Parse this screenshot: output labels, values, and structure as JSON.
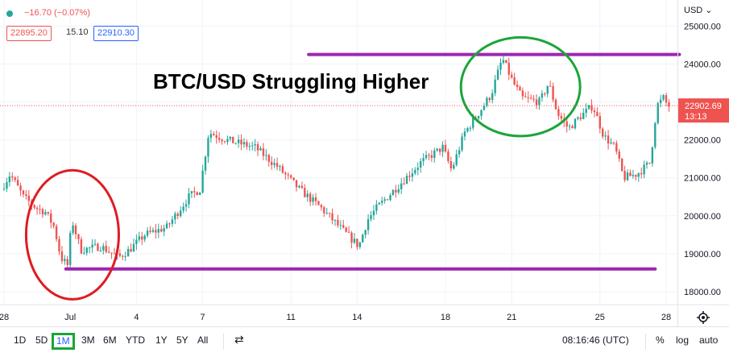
{
  "header": {
    "change": "−16.70 (−0.07%)",
    "bid": "22895.20",
    "spread": "15.10",
    "ask": "22910.30"
  },
  "currency_label": "USD ⌄",
  "price_tag": {
    "price": "22902.69",
    "countdown": "13:13"
  },
  "annotation_title": "BTC/USD Struggling Higher",
  "timeframes": [
    "1D",
    "5D",
    "1M",
    "3M",
    "6M",
    "YTD",
    "1Y",
    "5Y",
    "All"
  ],
  "active_timeframe": "1M",
  "time_readout": "08:16:46 (UTC)",
  "controls": {
    "percent": "%",
    "log": "log",
    "auto": "auto"
  },
  "colors": {
    "up": "#26a69a",
    "down": "#ef5350",
    "support": "#9c27b0",
    "red_circle": "#e01b22",
    "green_circle": "#1aa539",
    "price_tag": "#ef5350"
  },
  "chart_data": {
    "type": "candlestick",
    "title": "BTC/USD Struggling Higher",
    "x_ticks": [
      {
        "label": "28",
        "day": 0
      },
      {
        "label": "Jul",
        "day": 3
      },
      {
        "label": "4",
        "day": 6
      },
      {
        "label": "7",
        "day": 9
      },
      {
        "label": "11",
        "day": 13
      },
      {
        "label": "14",
        "day": 16
      },
      {
        "label": "18",
        "day": 20
      },
      {
        "label": "21",
        "day": 23
      },
      {
        "label": "25",
        "day": 27
      },
      {
        "label": "28",
        "day": 30
      }
    ],
    "y_ticks": [
      18000,
      19000,
      20000,
      21000,
      22000,
      23000,
      24000,
      25000
    ],
    "ylim": [
      17800,
      25300
    ],
    "current_price": 22902.69,
    "price_path": [
      [
        0,
        20700
      ],
      [
        0.4,
        21100
      ],
      [
        1.0,
        20500
      ],
      [
        1.6,
        20200
      ],
      [
        2.0,
        20100
      ],
      [
        2.4,
        19700
      ],
      [
        2.7,
        18900
      ],
      [
        3.0,
        18700
      ],
      [
        3.2,
        19900
      ],
      [
        3.6,
        19100
      ],
      [
        4.5,
        19200
      ],
      [
        5.3,
        18900
      ],
      [
        5.8,
        19100
      ],
      [
        6.5,
        19500
      ],
      [
        7.5,
        19700
      ],
      [
        8.5,
        20500
      ],
      [
        9.0,
        20700
      ],
      [
        9.4,
        22200
      ],
      [
        10.2,
        22000
      ],
      [
        11.5,
        21800
      ],
      [
        12.5,
        21300
      ],
      [
        13.5,
        20700
      ],
      [
        14.5,
        20200
      ],
      [
        15.5,
        19600
      ],
      [
        16.2,
        19200
      ],
      [
        16.6,
        19900
      ],
      [
        17.0,
        20200
      ],
      [
        18.0,
        20800
      ],
      [
        19.0,
        21400
      ],
      [
        20.0,
        21800
      ],
      [
        20.4,
        21200
      ],
      [
        21.0,
        22200
      ],
      [
        21.5,
        22600
      ],
      [
        22.2,
        23200
      ],
      [
        22.7,
        24150
      ],
      [
        23.2,
        23500
      ],
      [
        23.6,
        23100
      ],
      [
        24.4,
        23000
      ],
      [
        24.8,
        23500
      ],
      [
        25.2,
        22700
      ],
      [
        25.7,
        22300
      ],
      [
        26.2,
        22600
      ],
      [
        26.8,
        22900
      ],
      [
        27.3,
        22100
      ],
      [
        27.8,
        21800
      ],
      [
        28.2,
        21000
      ],
      [
        28.8,
        21100
      ],
      [
        29.4,
        21400
      ],
      [
        29.7,
        22900
      ],
      [
        30.0,
        23100
      ],
      [
        30.2,
        22900
      ]
    ],
    "support_line": {
      "price": 18600,
      "from_day": 2.8,
      "to_day": 29.5
    },
    "resistance_line": {
      "price": 24250,
      "from_day": 13.8,
      "to_day": 30.6
    },
    "red_circle": {
      "center_day": 3.1,
      "center_price": 19500,
      "radius_x_days": 2.1,
      "radius_y_price": 1700
    },
    "green_circle": {
      "center_day": 23.4,
      "center_price": 23400,
      "radius_x_days": 2.7,
      "radius_y_price": 1300
    }
  }
}
